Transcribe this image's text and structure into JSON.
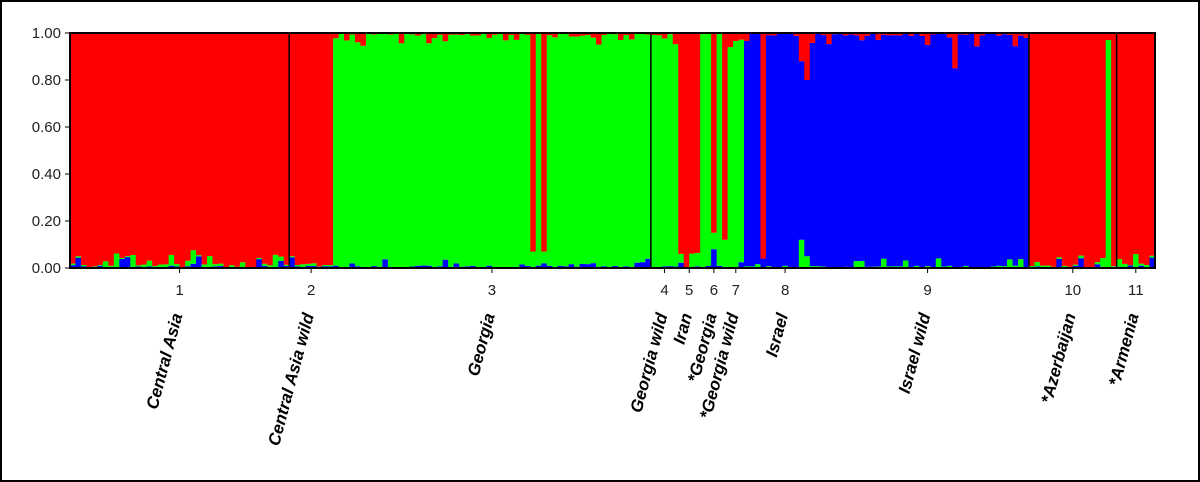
{
  "chart_data": {
    "type": "bar",
    "subtype": "stacked-admixture",
    "title": "",
    "xlabel": "",
    "ylabel": "",
    "ylim": [
      0,
      1
    ],
    "yticks": [
      "0.00",
      "0.20",
      "0.40",
      "0.60",
      "0.80",
      "1.00"
    ],
    "components": [
      {
        "name": "cluster-red",
        "color": "#ff0000"
      },
      {
        "name": "cluster-green",
        "color": "#00ff00"
      },
      {
        "name": "cluster-blue",
        "color": "#0000ff"
      }
    ],
    "groups": [
      {
        "number": "1",
        "label": "Central Asia",
        "dominant": "red",
        "start": 0,
        "end": 40
      },
      {
        "number": "2",
        "label": "Central Asia wild",
        "dominant": "red",
        "start": 40,
        "end": 48
      },
      {
        "number": "3",
        "label": "Georgia",
        "dominant": "green",
        "start": 48,
        "end": 106
      },
      {
        "number": "4",
        "label": "Georgia wild",
        "dominant": "green",
        "start": 106,
        "end": 111
      },
      {
        "number": "5",
        "label": "Iran",
        "dominant": "red",
        "start": 111,
        "end": 115
      },
      {
        "number": "6",
        "label": "*Georgia",
        "dominant": "green",
        "start": 115,
        "end": 120
      },
      {
        "number": "7",
        "label": "*Georgia wild",
        "dominant": "green",
        "start": 120,
        "end": 123
      },
      {
        "number": "8",
        "label": "Israel",
        "dominant": "blue",
        "start": 123,
        "end": 138
      },
      {
        "number": "9",
        "label": "Israel wild",
        "dominant": "blue",
        "start": 138,
        "end": 175
      },
      {
        "number": "10",
        "label": "*Azerbaijan",
        "dominant": "red",
        "start": 175,
        "end": 191
      },
      {
        "number": "11",
        "label": "*Armenia",
        "dominant": "red",
        "start": 191,
        "end": 198
      }
    ],
    "boundaries": [
      40,
      106,
      175,
      191
    ],
    "n_individuals": 198,
    "notable_individuals": [
      {
        "index": 84,
        "red": 0.93,
        "green": 0.07,
        "blue": 0.0
      },
      {
        "index": 86,
        "red": 0.93,
        "green": 0.05,
        "blue": 0.02
      },
      {
        "index": 117,
        "red": 0.85,
        "green": 0.07,
        "blue": 0.08
      },
      {
        "index": 119,
        "red": 0.88,
        "green": 0.12,
        "blue": 0.0
      },
      {
        "index": 126,
        "red": 0.96,
        "green": 0.0,
        "blue": 0.04
      },
      {
        "index": 133,
        "red": 0.12,
        "green": 0.12,
        "blue": 0.76
      },
      {
        "index": 134,
        "red": 0.2,
        "green": 0.05,
        "blue": 0.75
      },
      {
        "index": 161,
        "red": 0.15,
        "green": 0.0,
        "blue": 0.85
      },
      {
        "index": 189,
        "red": 0.03,
        "green": 0.97,
        "blue": 0.0
      }
    ]
  }
}
